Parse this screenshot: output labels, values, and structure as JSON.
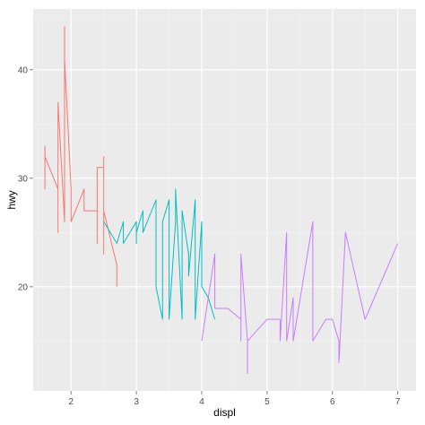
{
  "chart_data": {
    "type": "line",
    "title": "",
    "xlabel": "displ",
    "ylabel": "hwy",
    "xlim": [
      1.42,
      7.28
    ],
    "ylim": [
      10.4,
      45.6
    ],
    "xticks": [
      2,
      3,
      4,
      5,
      6,
      7
    ],
    "yticks": [
      20,
      30,
      40
    ],
    "grid": true,
    "legend": "none",
    "panel_color": "#ebebeb",
    "grid_color": "#ffffff",
    "series": [
      {
        "color": "#F8766D",
        "points": [
          [
            1.6,
            33
          ],
          [
            1.6,
            29
          ],
          [
            1.6,
            32
          ],
          [
            1.8,
            29
          ],
          [
            1.8,
            25
          ],
          [
            1.8,
            37
          ],
          [
            1.9,
            26
          ],
          [
            1.9,
            44
          ],
          [
            1.9,
            41
          ],
          [
            2.0,
            29
          ],
          [
            2.0,
            26
          ],
          [
            2.2,
            29
          ],
          [
            2.2,
            27
          ],
          [
            2.4,
            27
          ],
          [
            2.4,
            24
          ],
          [
            2.4,
            31
          ],
          [
            2.5,
            31
          ],
          [
            2.5,
            32
          ],
          [
            2.5,
            23
          ],
          [
            2.5,
            27
          ],
          [
            2.7,
            22
          ],
          [
            2.7,
            20
          ]
        ]
      },
      {
        "color": "#00BFC4",
        "points": [
          [
            2.5,
            26
          ],
          [
            2.7,
            24
          ],
          [
            2.8,
            26
          ],
          [
            2.8,
            24
          ],
          [
            3.0,
            26
          ],
          [
            3.0,
            24
          ],
          [
            3.0,
            25
          ],
          [
            3.1,
            27
          ],
          [
            3.1,
            25
          ],
          [
            3.3,
            28
          ],
          [
            3.3,
            20
          ],
          [
            3.4,
            17
          ],
          [
            3.4,
            26
          ],
          [
            3.5,
            28
          ],
          [
            3.5,
            17
          ],
          [
            3.6,
            26
          ],
          [
            3.6,
            29
          ],
          [
            3.7,
            17
          ],
          [
            3.7,
            27
          ],
          [
            3.8,
            23
          ],
          [
            3.8,
            21
          ],
          [
            3.9,
            28
          ],
          [
            3.9,
            17
          ],
          [
            4.0,
            26
          ],
          [
            4.0,
            20
          ],
          [
            4.1,
            19
          ],
          [
            4.2,
            17
          ]
        ]
      },
      {
        "color": "#C77CFF",
        "points": [
          [
            4.0,
            15
          ],
          [
            4.2,
            23
          ],
          [
            4.2,
            18
          ],
          [
            4.4,
            18
          ],
          [
            4.6,
            17
          ],
          [
            4.6,
            15
          ],
          [
            4.6,
            23
          ],
          [
            4.7,
            15
          ],
          [
            4.7,
            12
          ],
          [
            4.7,
            15
          ],
          [
            5.0,
            17
          ],
          [
            5.2,
            17
          ],
          [
            5.2,
            15
          ],
          [
            5.3,
            25
          ],
          [
            5.3,
            15
          ],
          [
            5.4,
            19
          ],
          [
            5.4,
            17
          ],
          [
            5.4,
            15
          ],
          [
            5.7,
            26
          ],
          [
            5.7,
            15
          ],
          [
            5.9,
            17
          ],
          [
            6.0,
            17
          ],
          [
            6.1,
            15
          ],
          [
            6.1,
            13
          ],
          [
            6.2,
            25
          ],
          [
            6.5,
            17
          ],
          [
            7.0,
            24
          ]
        ]
      }
    ]
  }
}
